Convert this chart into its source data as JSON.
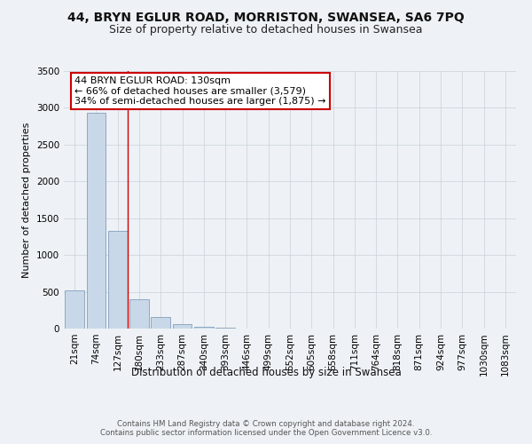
{
  "title_line1": "44, BRYN EGLUR ROAD, MORRISTON, SWANSEA, SA6 7PQ",
  "title_line2": "Size of property relative to detached houses in Swansea",
  "xlabel": "Distribution of detached houses by size in Swansea",
  "ylabel": "Number of detached properties",
  "footnote": "Contains HM Land Registry data © Crown copyright and database right 2024.\nContains public sector information licensed under the Open Government Licence v3.0.",
  "bar_labels": [
    "21sqm",
    "74sqm",
    "127sqm",
    "180sqm",
    "233sqm",
    "287sqm",
    "340sqm",
    "393sqm",
    "446sqm",
    "499sqm",
    "552sqm",
    "605sqm",
    "658sqm",
    "711sqm",
    "764sqm",
    "818sqm",
    "871sqm",
    "924sqm",
    "977sqm",
    "1030sqm",
    "1083sqm"
  ],
  "bar_values": [
    520,
    2930,
    1330,
    400,
    155,
    60,
    20,
    8,
    5,
    3,
    2,
    1,
    1,
    0,
    0,
    0,
    0,
    0,
    0,
    0,
    0
  ],
  "bar_color": "#c8d8e8",
  "bar_edge_color": "#7090b0",
  "property_bin_index": 2,
  "annotation_text": "44 BRYN EGLUR ROAD: 130sqm\n← 66% of detached houses are smaller (3,579)\n34% of semi-detached houses are larger (1,875) →",
  "annotation_box_color": "#ffffff",
  "annotation_box_edgecolor": "#cc0000",
  "marker_line_color": "#cc0000",
  "ylim": [
    0,
    3500
  ],
  "yticks": [
    0,
    500,
    1000,
    1500,
    2000,
    2500,
    3000,
    3500
  ],
  "bg_color": "#eef2f6",
  "plot_bg_color": "#eef2f6",
  "grid_color": "#c8d0da",
  "title_fontsize": 10,
  "subtitle_fontsize": 9,
  "axis_label_fontsize": 8.5,
  "tick_fontsize": 7.5,
  "annotation_fontsize": 8,
  "ylabel_fontsize": 8
}
